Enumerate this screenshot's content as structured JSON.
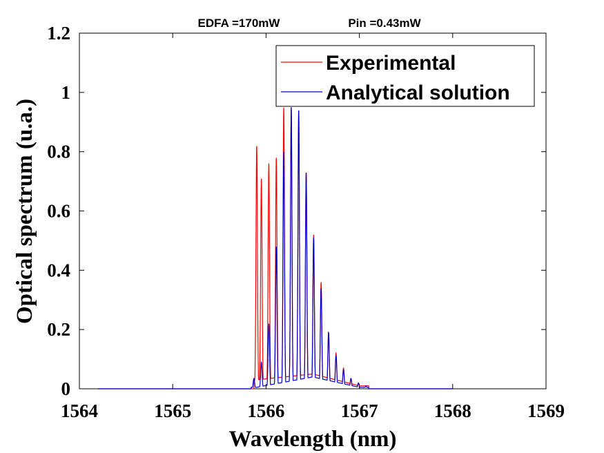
{
  "chart_data": {
    "type": "line",
    "title_parts": [
      "EDFA =170mW",
      "Pin =0.43mW"
    ],
    "xlabel": "Wavelength (nm)",
    "ylabel": "Optical spectrum (u.a.)",
    "xlim": [
      1564,
      1569
    ],
    "ylim": [
      0,
      1.2
    ],
    "x_ticks": [
      1564,
      1565,
      1566,
      1567,
      1568,
      1569
    ],
    "x_tick_labels": [
      "1564",
      "1565",
      "1566",
      "1567",
      "1568",
      "1569"
    ],
    "y_ticks": [
      0,
      0.2,
      0.4,
      0.6,
      0.8,
      1.0,
      1.2
    ],
    "y_tick_labels": [
      "0",
      "0.2",
      "0.4",
      "0.6",
      "0.8",
      "1",
      "1.2"
    ],
    "grid": false,
    "legend_position": "top-right",
    "series": [
      {
        "name": "Experimental",
        "color": "#ff0000",
        "peaks": [
          {
            "x": 1565.9,
            "y": 0.82
          },
          {
            "x": 1565.95,
            "y": 0.71
          },
          {
            "x": 1566.03,
            "y": 0.76
          },
          {
            "x": 1566.11,
            "y": 0.78
          },
          {
            "x": 1566.19,
            "y": 0.95
          },
          {
            "x": 1566.27,
            "y": 0.95
          },
          {
            "x": 1566.35,
            "y": 0.94
          },
          {
            "x": 1566.43,
            "y": 0.73
          },
          {
            "x": 1566.51,
            "y": 0.52
          },
          {
            "x": 1566.59,
            "y": 0.36
          },
          {
            "x": 1566.67,
            "y": 0.19
          },
          {
            "x": 1566.75,
            "y": 0.12
          },
          {
            "x": 1566.83,
            "y": 0.07
          },
          {
            "x": 1566.91,
            "y": 0.035
          },
          {
            "x": 1566.99,
            "y": 0.02
          },
          {
            "x": 1567.07,
            "y": 0.01
          }
        ],
        "floor": [
          {
            "x": 1565.9,
            "y": 0.03
          },
          {
            "x": 1566.5,
            "y": 0.05
          },
          {
            "x": 1567.0,
            "y": 0.01
          }
        ]
      },
      {
        "name": "Analytical solution",
        "color": "#0000cc",
        "peaks": [
          {
            "x": 1565.87,
            "y": 0.035
          },
          {
            "x": 1565.95,
            "y": 0.09
          },
          {
            "x": 1566.03,
            "y": 0.22
          },
          {
            "x": 1566.11,
            "y": 0.48
          },
          {
            "x": 1566.19,
            "y": 0.8
          },
          {
            "x": 1566.27,
            "y": 0.95
          },
          {
            "x": 1566.35,
            "y": 0.94
          },
          {
            "x": 1566.43,
            "y": 0.73
          },
          {
            "x": 1566.51,
            "y": 0.51
          },
          {
            "x": 1566.59,
            "y": 0.34
          },
          {
            "x": 1566.67,
            "y": 0.19
          },
          {
            "x": 1566.75,
            "y": 0.11
          },
          {
            "x": 1566.83,
            "y": 0.065
          },
          {
            "x": 1566.91,
            "y": 0.035
          },
          {
            "x": 1566.99,
            "y": 0.02
          },
          {
            "x": 1567.07,
            "y": 0.01
          }
        ],
        "floor": [
          {
            "x": 1565.9,
            "y": 0.005
          },
          {
            "x": 1566.5,
            "y": 0.04
          },
          {
            "x": 1567.0,
            "y": 0.005
          }
        ]
      }
    ]
  }
}
